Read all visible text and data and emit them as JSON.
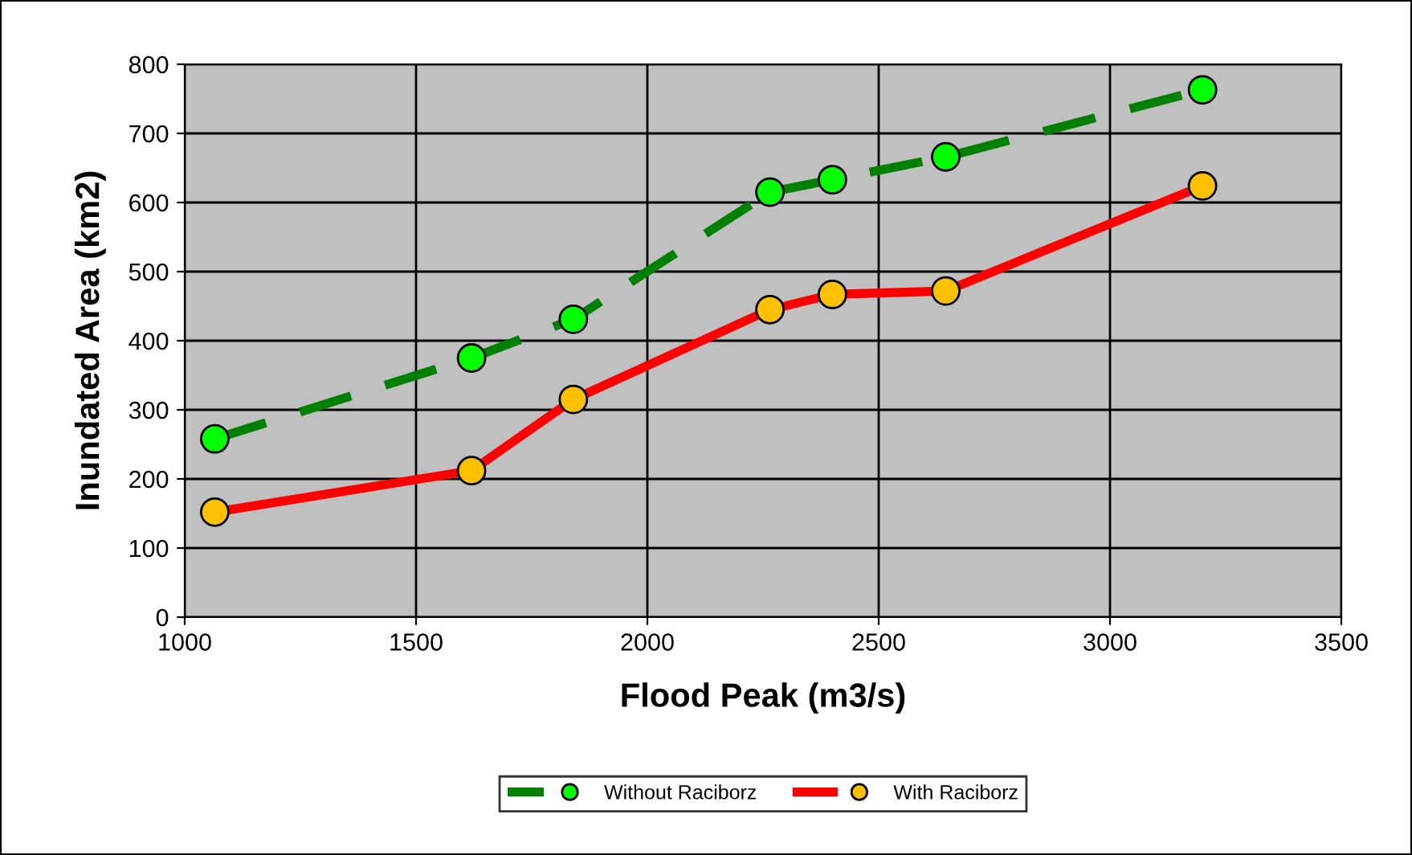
{
  "chart_data": {
    "type": "line",
    "xlabel": "Flood Peak (m3/s)",
    "ylabel": "Inundated Area (km2)",
    "xlim": [
      1000,
      3500
    ],
    "xticks": [
      1000,
      1500,
      2000,
      2500,
      3000,
      3500
    ],
    "ylim": [
      0,
      800
    ],
    "yticks": [
      0,
      100,
      200,
      300,
      400,
      500,
      600,
      700,
      800
    ],
    "grid": true,
    "legend": "bottom",
    "marker": "circle",
    "x": [
      1065,
      1620,
      1840,
      2265,
      2400,
      2645,
      3200
    ],
    "series": [
      {
        "name": "Without Raciborz",
        "color": "#008000",
        "line_style": "dashed",
        "values": [
          258,
          375,
          431,
          615,
          633,
          666,
          763
        ]
      },
      {
        "name": "With Raciborz",
        "color": "#ff0000",
        "line_style": "solid",
        "values": [
          152,
          212,
          315,
          445,
          467,
          472,
          624
        ]
      }
    ]
  }
}
